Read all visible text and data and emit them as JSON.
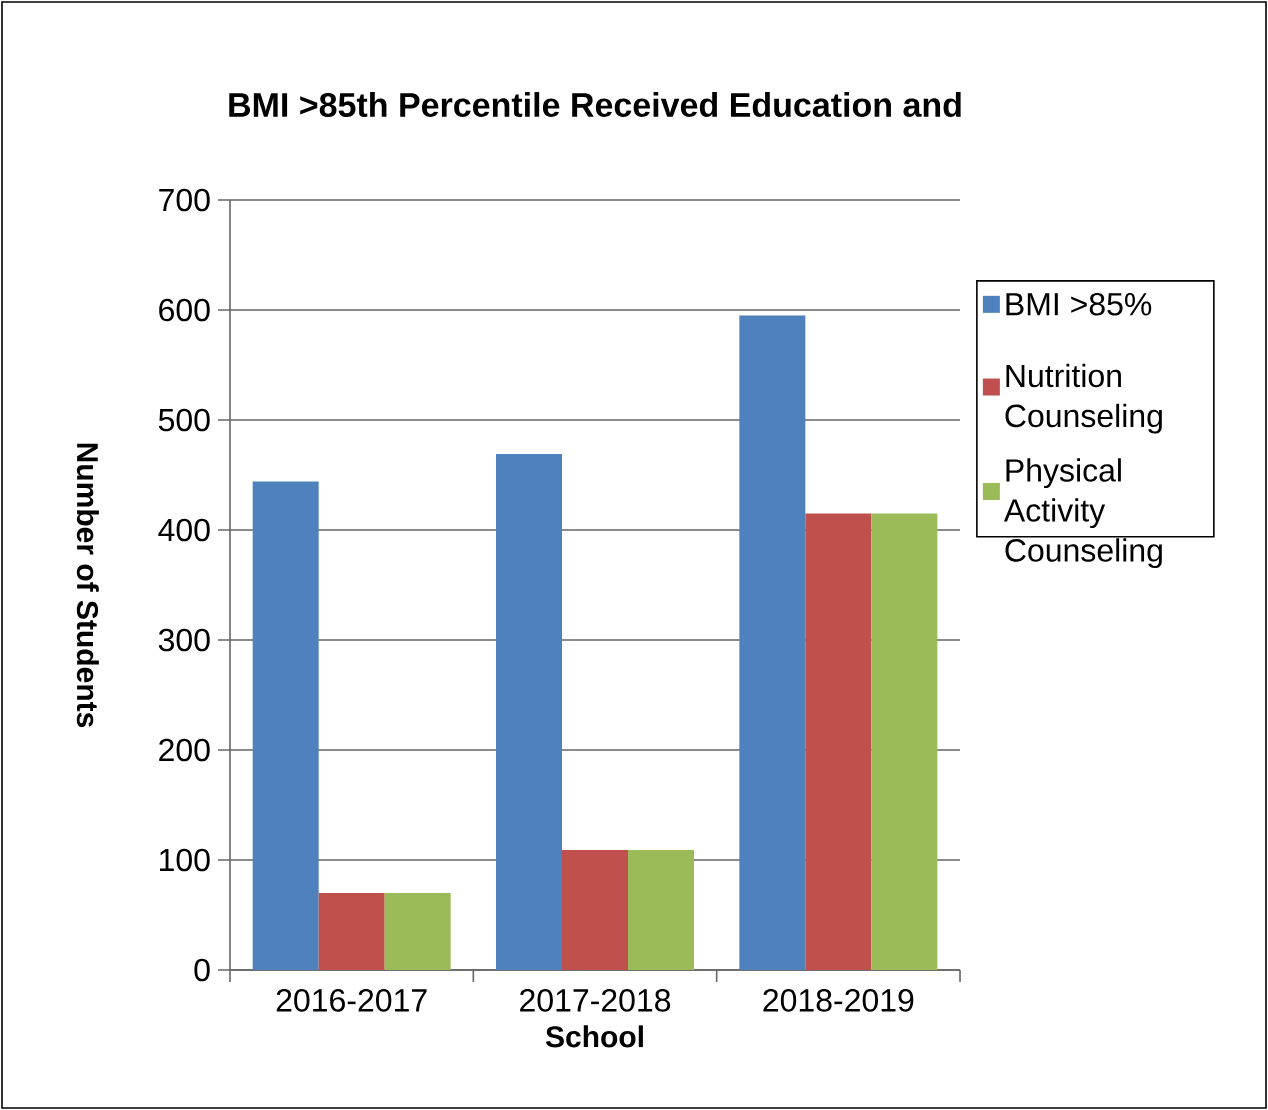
{
  "chart_data": {
    "type": "bar",
    "title": "BMI >85th Percentile Received Education and",
    "xlabel": "School",
    "ylabel": "Number of Students",
    "categories": [
      "2016-2017",
      "2017-2018",
      "2018-2019"
    ],
    "series": [
      {
        "name": "BMI >85%",
        "color": "#4f81bd",
        "values": [
          444,
          469,
          595
        ]
      },
      {
        "name": "Nutrition Counseling",
        "color": "#c0504d",
        "values": [
          70,
          109,
          415
        ]
      },
      {
        "name": "Physical Activity Counseling",
        "color": "#9bbb59",
        "values": [
          70,
          109,
          415
        ]
      }
    ],
    "ylim": [
      0,
      700
    ],
    "yticks": [
      0,
      100,
      200,
      300,
      400,
      500,
      600,
      700
    ],
    "grid": "y",
    "legend": "right"
  }
}
